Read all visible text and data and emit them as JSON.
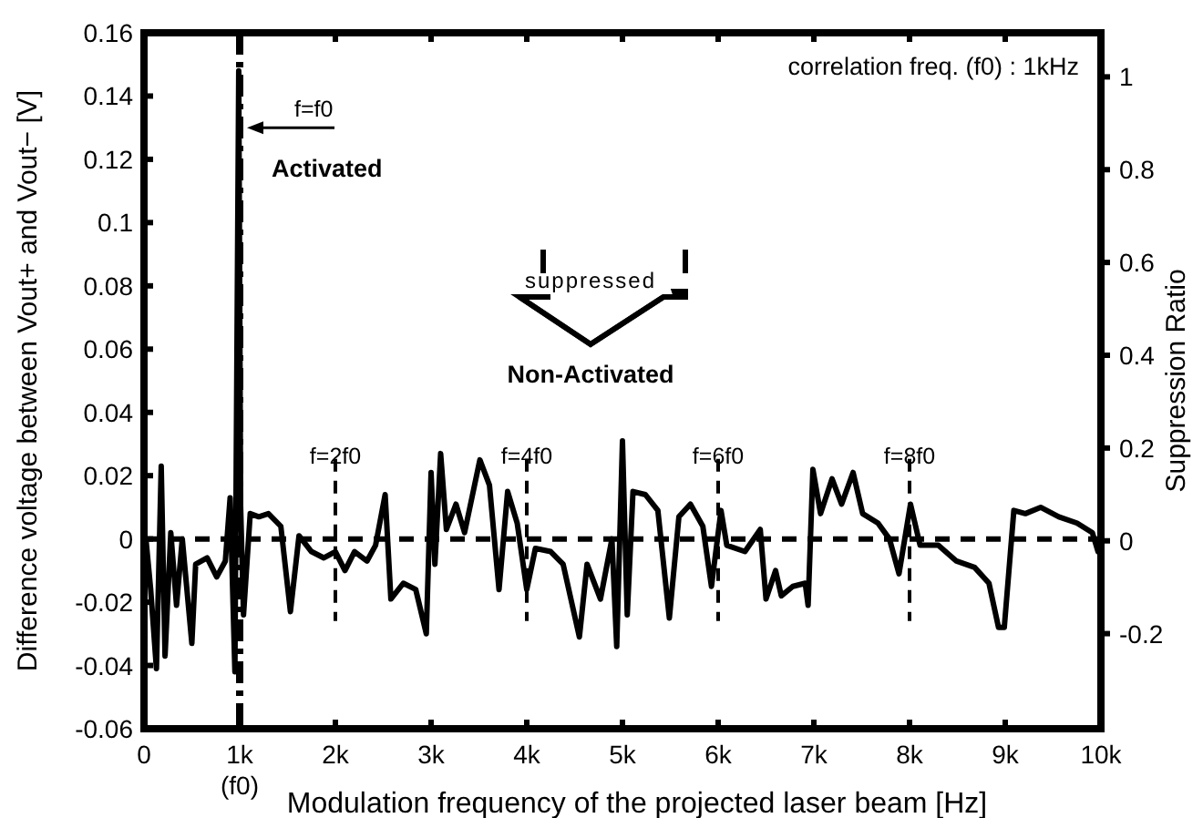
{
  "chart_data": {
    "type": "line",
    "xlabel": "Modulation frequency of the projected laser beam [Hz]",
    "ylabel": "Difference voltage between Vout+ and Vout− [V]",
    "y2label": "Suppression Ratio",
    "xlim": [
      0,
      10000
    ],
    "xticks": [
      0,
      {
        "value": 1000,
        "label": "1k\n(f0)"
      },
      {
        "value": 2000,
        "label": "2k"
      },
      {
        "value": 3000,
        "label": "3k"
      },
      {
        "value": 4000,
        "label": "4k"
      },
      {
        "value": 5000,
        "label": "5k"
      },
      {
        "value": 6000,
        "label": "6k"
      },
      {
        "value": 7000,
        "label": "7k"
      },
      {
        "value": 8000,
        "label": "8k"
      },
      {
        "value": 9000,
        "label": "9k"
      },
      {
        "value": 10000,
        "label": "10k"
      }
    ],
    "ylim": [
      -0.06,
      0.16
    ],
    "yticks": [
      -0.06,
      -0.04,
      -0.02,
      0,
      0.02,
      0.04,
      0.06,
      0.08,
      0.1,
      0.12,
      0.14,
      0.16
    ],
    "y2lim": [
      -0.405,
      1.095
    ],
    "y2ticks": [
      -0.2,
      0,
      0.2,
      0.4,
      0.6,
      0.8,
      1
    ],
    "series": [
      {
        "color": "#000000",
        "x": [
          20,
          70,
          130,
          180,
          220,
          280,
          340,
          400,
          500,
          540,
          660,
          760,
          850,
          900,
          950,
          990,
          1010,
          1040,
          1110,
          1200,
          1300,
          1430,
          1530,
          1620,
          1750,
          1880,
          2000,
          2100,
          2200,
          2330,
          2420,
          2520,
          2580,
          2710,
          2840,
          2950,
          3000,
          3040,
          3100,
          3160,
          3260,
          3350,
          3510,
          3610,
          3710,
          3800,
          3900,
          4000,
          4090,
          4250,
          4380,
          4550,
          4630,
          4770,
          4890,
          4940,
          5000,
          5050,
          5110,
          5240,
          5370,
          5490,
          5590,
          5710,
          5840,
          5930,
          6030,
          6090,
          6280,
          6440,
          6500,
          6600,
          6660,
          6780,
          6910,
          6940,
          6990,
          7070,
          7190,
          7290,
          7410,
          7510,
          7670,
          7790,
          7890,
          8010,
          8110,
          8300,
          8490,
          8680,
          8830,
          8930,
          8990,
          9090,
          9210,
          9370,
          9560,
          9750,
          9910,
          9970,
          10000
        ],
        "values": [
          0,
          -0.016,
          -0.041,
          0.023,
          -0.037,
          0.002,
          -0.021,
          0,
          -0.033,
          -0.008,
          -0.006,
          -0.012,
          -0.007,
          0.013,
          -0.042,
          0.148,
          0.01,
          -0.024,
          0.008,
          0.007,
          0.008,
          0.004,
          -0.023,
          0.001,
          -0.004,
          -0.006,
          -0.004,
          -0.01,
          -0.004,
          -0.007,
          -0.002,
          0.014,
          -0.019,
          -0.014,
          -0.016,
          -0.03,
          0.021,
          -0.008,
          0.027,
          0.003,
          0.011,
          0.002,
          0.025,
          0.017,
          -0.016,
          0.015,
          0.005,
          -0.016,
          -0.003,
          -0.004,
          -0.008,
          -0.031,
          -0.008,
          -0.019,
          0,
          -0.034,
          0.031,
          -0.024,
          0.015,
          0.014,
          0.009,
          -0.025,
          0.007,
          0.011,
          0.004,
          -0.015,
          0.009,
          -0.002,
          -0.004,
          0.003,
          -0.019,
          -0.01,
          -0.018,
          -0.015,
          -0.014,
          -0.021,
          0.022,
          0.008,
          0.019,
          0.011,
          0.021,
          0.008,
          0.005,
          0,
          -0.011,
          0.011,
          -0.002,
          -0.002,
          -0.007,
          -0.009,
          -0.014,
          -0.028,
          -0.028,
          0.009,
          0.008,
          0.01,
          0.007,
          0.005,
          0.002,
          -0.004,
          -0.001
        ]
      }
    ],
    "ref_lines": [
      {
        "axis": "y",
        "value": 0,
        "line_style": "dashed"
      },
      {
        "axis": "x",
        "value": 1000,
        "line_style": "dashed"
      },
      {
        "axis": "x",
        "value": 2000,
        "line_style": "dashed"
      },
      {
        "axis": "x",
        "value": 4000,
        "line_style": "dashed"
      },
      {
        "axis": "x",
        "value": 6000,
        "line_style": "dashed"
      },
      {
        "axis": "x",
        "value": 8000,
        "line_style": "dashed"
      }
    ],
    "annotations": [
      {
        "text": "f=f0",
        "x": 1000,
        "y": 0.13
      },
      "Activated",
      "suppressed",
      "Non-Activated",
      "correlation freq. (f0) : 1kHz",
      {
        "text": "f=2f0",
        "x": 2000,
        "y": 0.026
      },
      {
        "text": "f=4f0",
        "x": 4000,
        "y": 0.026
      },
      {
        "text": "f=6f0",
        "x": 6000,
        "y": 0.026
      },
      {
        "text": "f=8f0",
        "x": 8000,
        "y": 0.026
      }
    ],
    "grid": false,
    "line_style": "solid"
  }
}
